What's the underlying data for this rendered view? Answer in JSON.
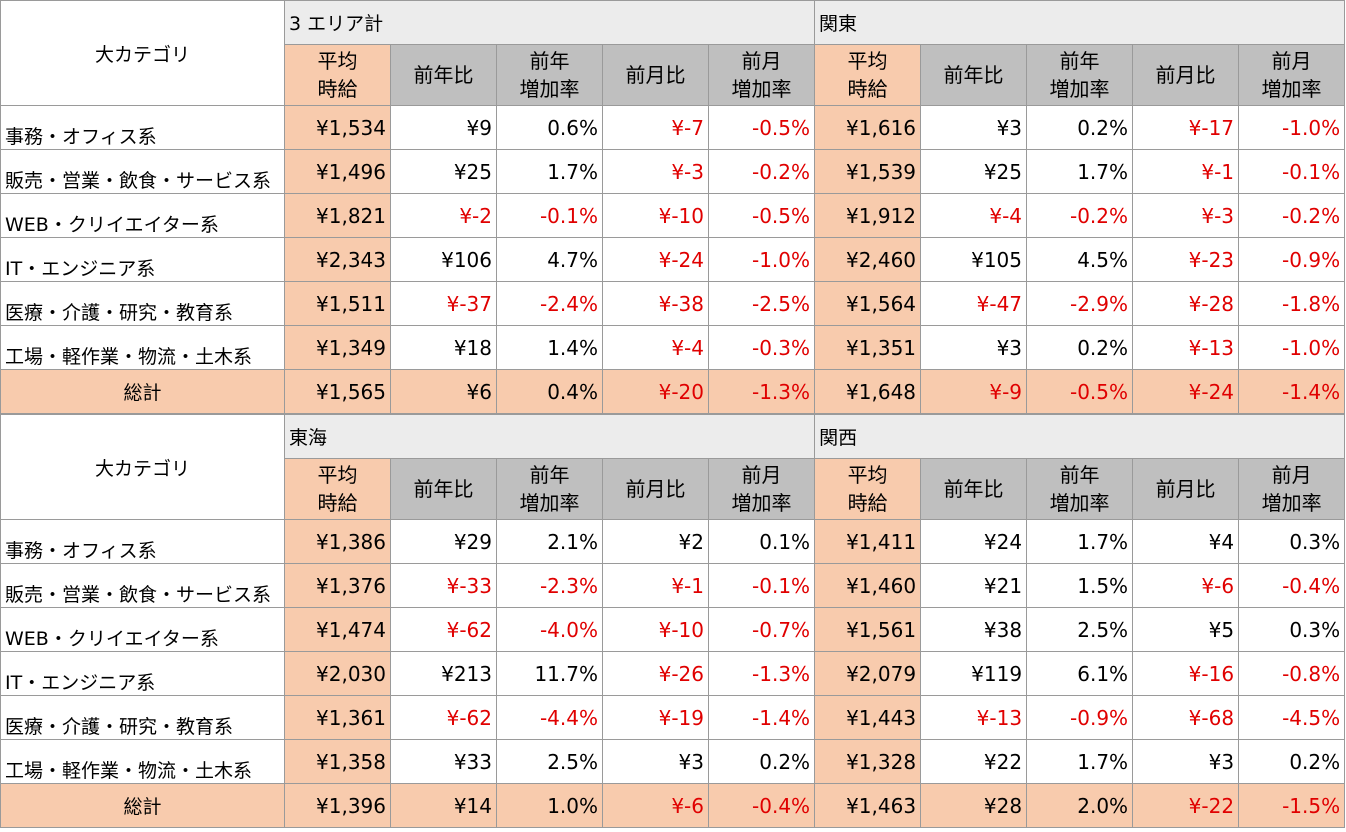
{
  "header_category": "大カテゴリ",
  "sub_headers": [
    [
      "平均",
      "時給"
    ],
    [
      "前年比"
    ],
    [
      "前年",
      "増加率"
    ],
    [
      "前月比"
    ],
    [
      "前月",
      "増加率"
    ]
  ],
  "total_label": "総計",
  "blocks": [
    {
      "regions": [
        "3 エリア計",
        "関東"
      ],
      "rows": [
        {
          "category": "事務・オフィス系",
          "values": [
            "¥1,534",
            "¥9",
            "0.6%",
            "¥-7",
            "-0.5%",
            "¥1,616",
            "¥3",
            "0.2%",
            "¥-17",
            "-1.0%"
          ]
        },
        {
          "category": "販売・営業・飲食・サービス系",
          "values": [
            "¥1,496",
            "¥25",
            "1.7%",
            "¥-3",
            "-0.2%",
            "¥1,539",
            "¥25",
            "1.7%",
            "¥-1",
            "-0.1%"
          ]
        },
        {
          "category": "WEB・クリイエイター系",
          "values": [
            "¥1,821",
            "¥-2",
            "-0.1%",
            "¥-10",
            "-0.5%",
            "¥1,912",
            "¥-4",
            "-0.2%",
            "¥-3",
            "-0.2%"
          ]
        },
        {
          "category": "IT・エンジニア系",
          "values": [
            "¥2,343",
            "¥106",
            "4.7%",
            "¥-24",
            "-1.0%",
            "¥2,460",
            "¥105",
            "4.5%",
            "¥-23",
            "-0.9%"
          ]
        },
        {
          "category": "医療・介護・研究・教育系",
          "values": [
            "¥1,511",
            "¥-37",
            "-2.4%",
            "¥-38",
            "-2.5%",
            "¥1,564",
            "¥-47",
            "-2.9%",
            "¥-28",
            "-1.8%"
          ]
        },
        {
          "category": "工場・軽作業・物流・土木系",
          "values": [
            "¥1,349",
            "¥18",
            "1.4%",
            "¥-4",
            "-0.3%",
            "¥1,351",
            "¥3",
            "0.2%",
            "¥-13",
            "-1.0%"
          ]
        }
      ],
      "total": [
        "¥1,565",
        "¥6",
        "0.4%",
        "¥-20",
        "-1.3%",
        "¥1,648",
        "¥-9",
        "-0.5%",
        "¥-24",
        "-1.4%"
      ]
    },
    {
      "regions": [
        "東海",
        "関西"
      ],
      "rows": [
        {
          "category": "事務・オフィス系",
          "values": [
            "¥1,386",
            "¥29",
            "2.1%",
            "¥2",
            "0.1%",
            "¥1,411",
            "¥24",
            "1.7%",
            "¥4",
            "0.3%"
          ]
        },
        {
          "category": "販売・営業・飲食・サービス系",
          "values": [
            "¥1,376",
            "¥-33",
            "-2.3%",
            "¥-1",
            "-0.1%",
            "¥1,460",
            "¥21",
            "1.5%",
            "¥-6",
            "-0.4%"
          ]
        },
        {
          "category": "WEB・クリイエイター系",
          "values": [
            "¥1,474",
            "¥-62",
            "-4.0%",
            "¥-10",
            "-0.7%",
            "¥1,561",
            "¥38",
            "2.5%",
            "¥5",
            "0.3%"
          ]
        },
        {
          "category": "IT・エンジニア系",
          "values": [
            "¥2,030",
            "¥213",
            "11.7%",
            "¥-26",
            "-1.3%",
            "¥2,079",
            "¥119",
            "6.1%",
            "¥-16",
            "-0.8%"
          ]
        },
        {
          "category": "医療・介護・研究・教育系",
          "values": [
            "¥1,361",
            "¥-62",
            "-4.4%",
            "¥-19",
            "-1.4%",
            "¥1,443",
            "¥-13",
            "-0.9%",
            "¥-68",
            "-4.5%"
          ]
        },
        {
          "category": "工場・軽作業・物流・土木系",
          "values": [
            "¥1,358",
            "¥33",
            "2.5%",
            "¥3",
            "0.2%",
            "¥1,328",
            "¥22",
            "1.7%",
            "¥3",
            "0.2%"
          ]
        }
      ],
      "total": [
        "¥1,396",
        "¥14",
        "1.0%",
        "¥-6",
        "-0.4%",
        "¥1,463",
        "¥28",
        "2.0%",
        "¥-22",
        "-1.5%"
      ]
    }
  ]
}
